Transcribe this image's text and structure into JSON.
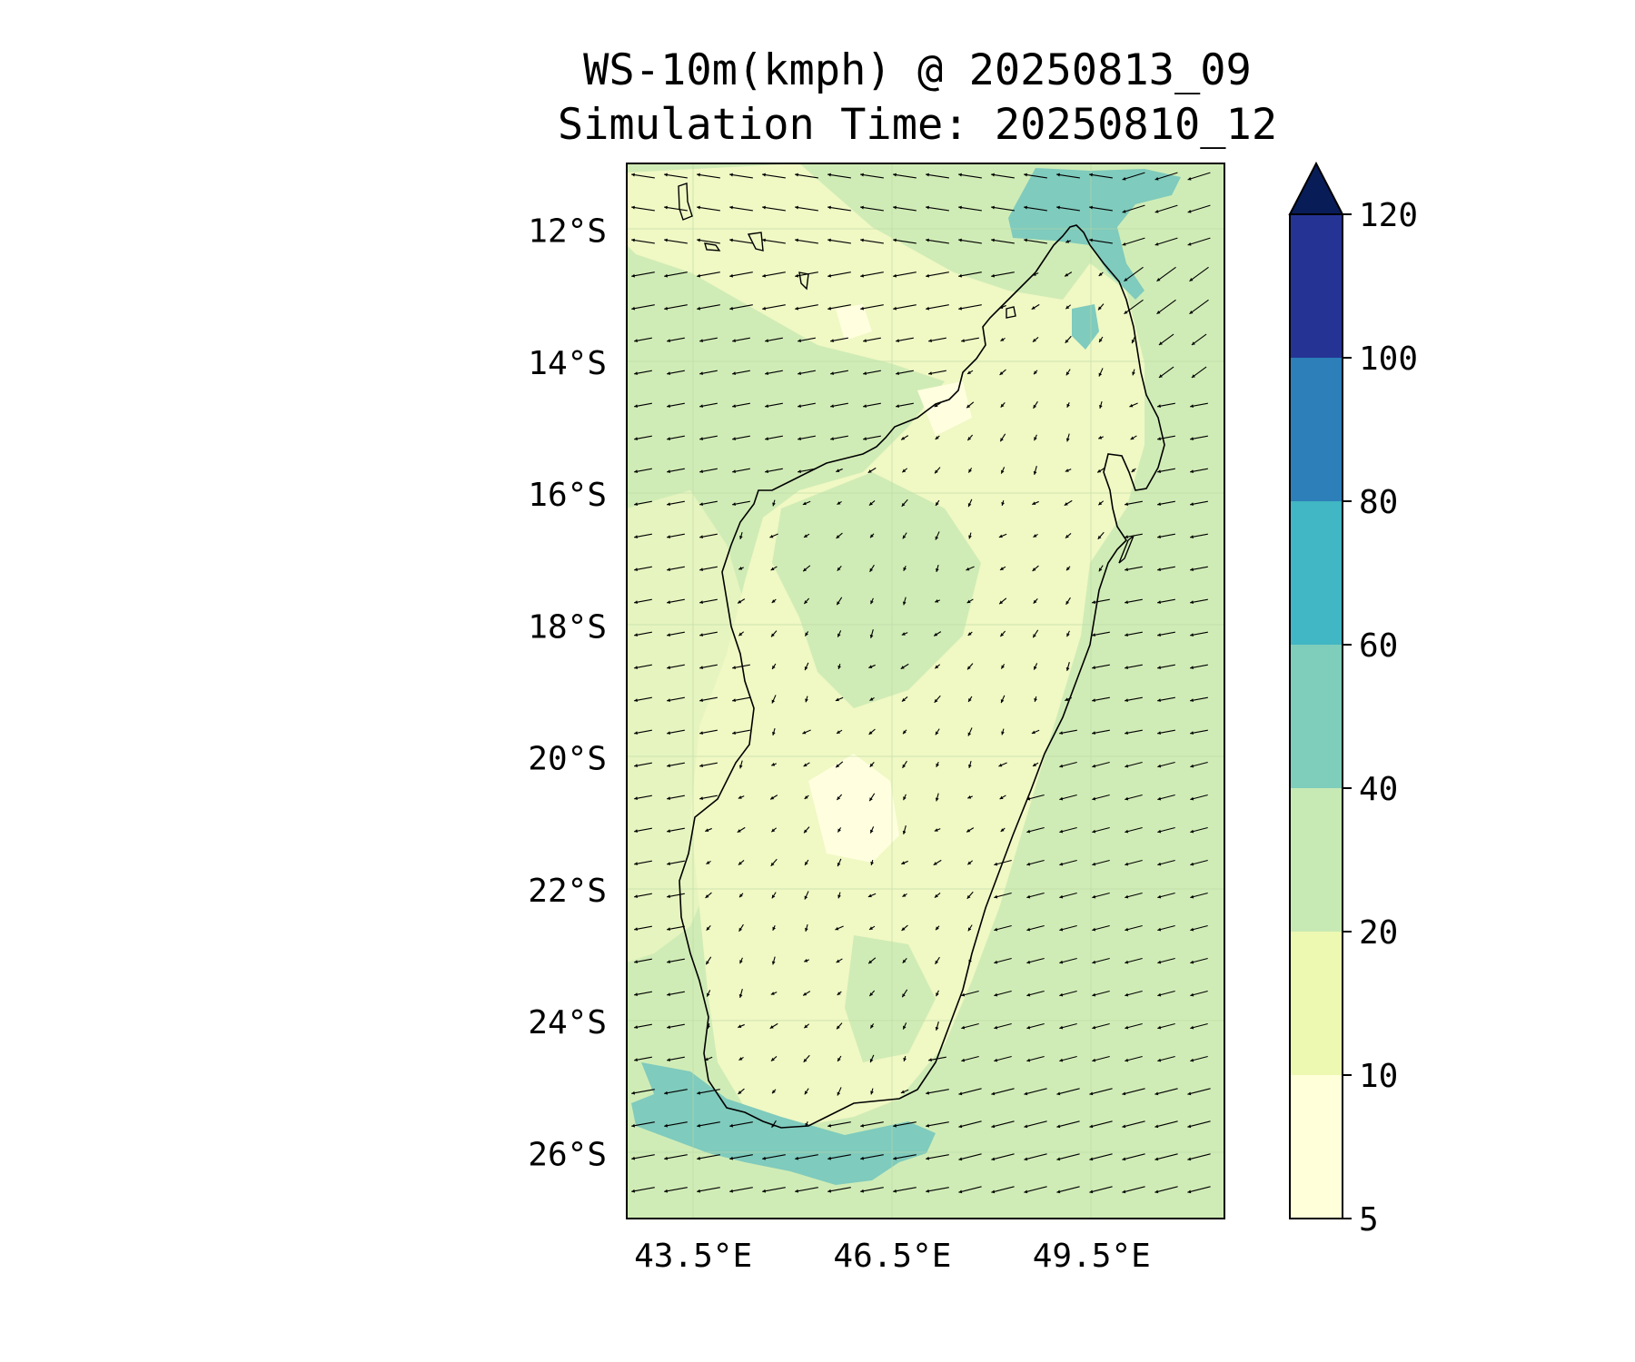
{
  "title": {
    "line1": "WS-10m(kmph) @ 20250813_09",
    "line2": "Simulation Time: 20250810_12"
  },
  "map": {
    "variable": "WS-10m(kmph)",
    "lon_range": [
      42.5,
      51.5
    ],
    "lat_range": [
      -27.0,
      -11.0
    ],
    "lat_ticks": [
      {
        "value": -12,
        "label": "12°S"
      },
      {
        "value": -14,
        "label": "14°S"
      },
      {
        "value": -16,
        "label": "16°S"
      },
      {
        "value": -18,
        "label": "18°S"
      },
      {
        "value": -20,
        "label": "20°S"
      },
      {
        "value": -22,
        "label": "22°S"
      },
      {
        "value": -24,
        "label": "24°S"
      },
      {
        "value": -26,
        "label": "26°S"
      }
    ],
    "lon_ticks": [
      {
        "value": 43.5,
        "label": "43.5°E"
      },
      {
        "value": 46.5,
        "label": "46.5°E"
      },
      {
        "value": 49.5,
        "label": "49.5°E"
      }
    ],
    "gridlines": true,
    "coastline": "Madagascar",
    "wind_vectors": "easterly trade winds over ocean, weak winds over land"
  },
  "colorbar": {
    "extend": "max",
    "levels": [
      5,
      10,
      20,
      40,
      60,
      80,
      100,
      120
    ],
    "tick_labels": [
      "5",
      "10",
      "20",
      "40",
      "60",
      "80",
      "100",
      "120"
    ],
    "colors": [
      "#ffffd9",
      "#edf8b1",
      "#c7e9b4",
      "#7fcdbb",
      "#41b6c4",
      "#2c7fb8",
      "#253494",
      "#081d58"
    ]
  },
  "colors": {
    "land_low": "#f2f9c4",
    "ocean_mid": "#d0ecb6",
    "strong_wind": "#7fcbbd",
    "coastline": "#000000",
    "arrow": "#000000"
  }
}
